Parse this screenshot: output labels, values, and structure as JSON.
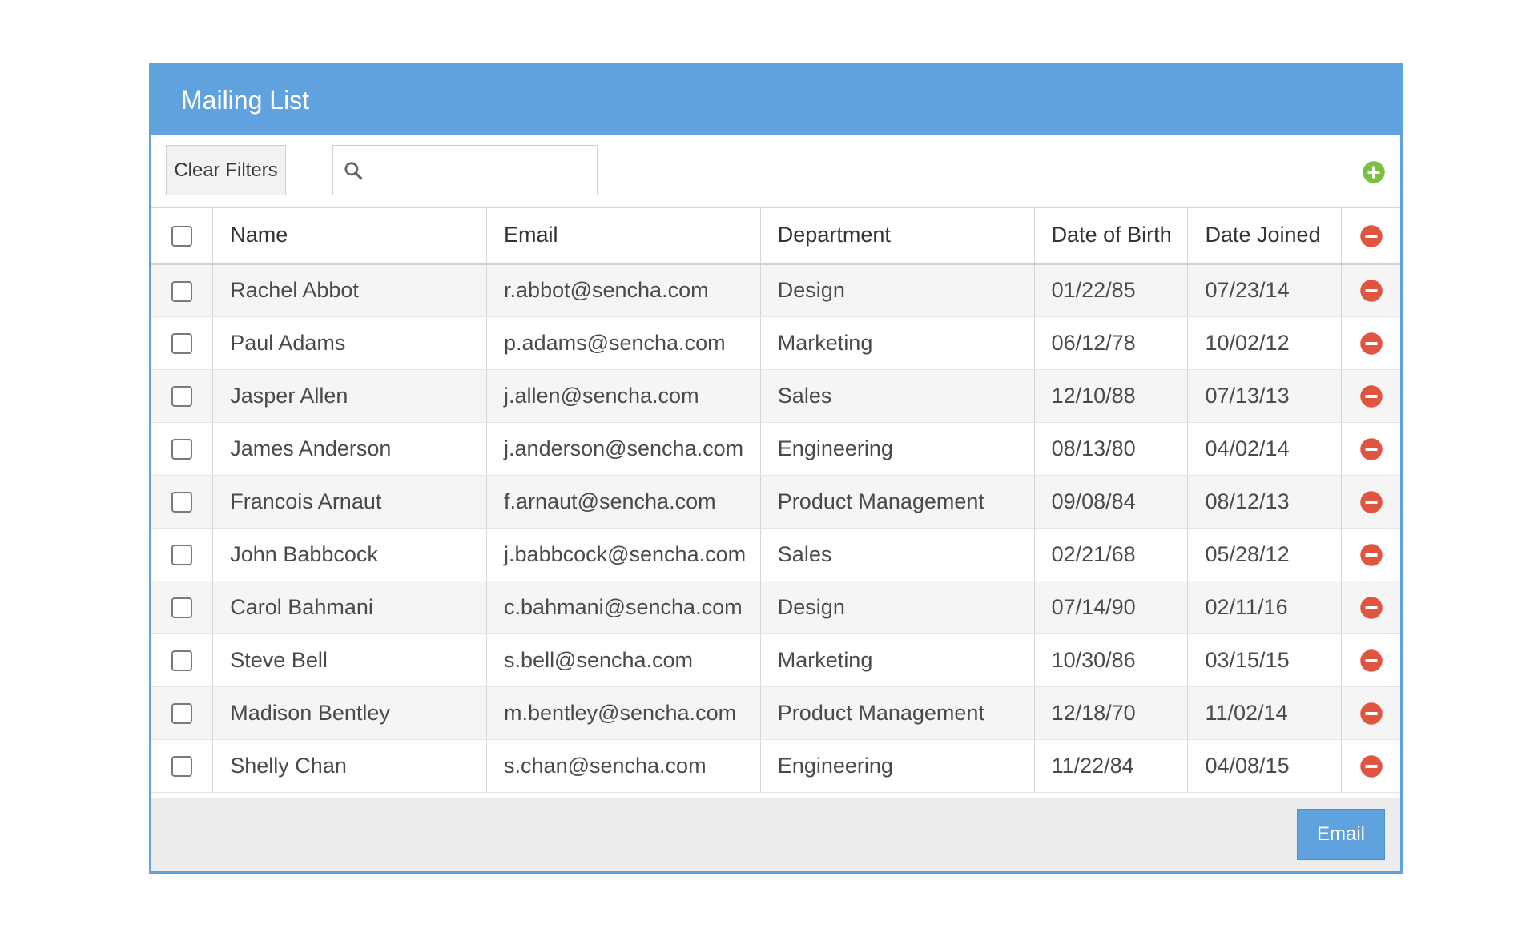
{
  "panel": {
    "title": "Mailing List",
    "accent_color": "#5fa2dd"
  },
  "toolbar": {
    "clear_filters_label": "Clear Filters",
    "search_value": "",
    "search_icon": "search-icon",
    "add_icon": "plus-circle-icon",
    "add_color": "#7ac143"
  },
  "grid": {
    "columns": [
      "Name",
      "Email",
      "Department",
      "Date of Birth",
      "Date Joined"
    ],
    "remove_icon": "minus-circle-icon",
    "remove_color": "#e0553f",
    "rows": [
      {
        "checked": false,
        "name": "Rachel Abbot",
        "email": "r.abbot@sencha.com",
        "department": "Design",
        "dob": "01/22/85",
        "joined": "07/23/14"
      },
      {
        "checked": false,
        "name": "Paul Adams",
        "email": "p.adams@sencha.com",
        "department": "Marketing",
        "dob": "06/12/78",
        "joined": "10/02/12"
      },
      {
        "checked": false,
        "name": "Jasper Allen",
        "email": "j.allen@sencha.com",
        "department": "Sales",
        "dob": "12/10/88",
        "joined": "07/13/13"
      },
      {
        "checked": false,
        "name": "James Anderson",
        "email": "j.anderson@sencha.com",
        "department": "Engineering",
        "dob": "08/13/80",
        "joined": "04/02/14"
      },
      {
        "checked": false,
        "name": "Francois Arnaut",
        "email": "f.arnaut@sencha.com",
        "department": "Product Management",
        "dob": "09/08/84",
        "joined": "08/12/13"
      },
      {
        "checked": false,
        "name": "John Babbcock",
        "email": "j.babbcock@sencha.com",
        "department": "Sales",
        "dob": "02/21/68",
        "joined": "05/28/12"
      },
      {
        "checked": false,
        "name": "Carol Bahmani",
        "email": "c.bahmani@sencha.com",
        "department": "Design",
        "dob": "07/14/90",
        "joined": "02/11/16"
      },
      {
        "checked": false,
        "name": "Steve Bell",
        "email": "s.bell@sencha.com",
        "department": "Marketing",
        "dob": "10/30/86",
        "joined": "03/15/15"
      },
      {
        "checked": false,
        "name": "Madison Bentley",
        "email": "m.bentley@sencha.com",
        "department": "Product Management",
        "dob": "12/18/70",
        "joined": "11/02/14"
      },
      {
        "checked": false,
        "name": "Shelly Chan",
        "email": "s.chan@sencha.com",
        "department": "Engineering",
        "dob": "11/22/84",
        "joined": "04/08/15"
      }
    ]
  },
  "footer": {
    "email_label": "Email"
  }
}
